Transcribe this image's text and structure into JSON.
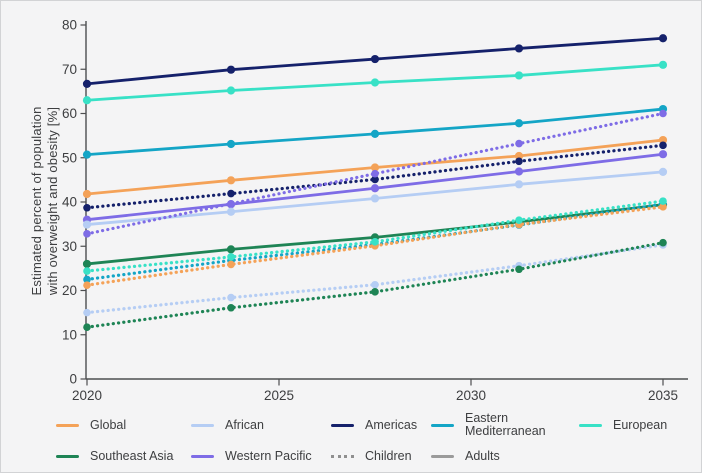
{
  "figure": {
    "ylabel_line1": "Estimated percent of population",
    "ylabel_line2": "with overweight and obesity [%]"
  },
  "chart_data": {
    "type": "line",
    "title": "",
    "xlabel": "",
    "ylabel": "Estimated percent of population with overweight and obesity [%]",
    "x": [
      2020,
      2023.75,
      2027.5,
      2031.25,
      2035
    ],
    "x_ticks": [
      "2020",
      "2025",
      "2030",
      "2035"
    ],
    "y_ticks": [
      "0",
      "10",
      "20",
      "30",
      "40",
      "50",
      "60",
      "70",
      "80"
    ],
    "ylim": [
      0,
      80
    ],
    "xlim": [
      2020,
      2035.6
    ],
    "grid": false,
    "legend_position": "bottom",
    "line_style_meaning": {
      "solid": "Adults",
      "dotted": "Children"
    },
    "series": [
      {
        "name": "Americas",
        "group": "Adults",
        "style": "solid",
        "color": "#15216b",
        "values": [
          66.7,
          69.9,
          72.3,
          74.7,
          77.0
        ]
      },
      {
        "name": "European",
        "group": "Adults",
        "style": "solid",
        "color": "#38e1c6",
        "values": [
          63.0,
          65.2,
          67.0,
          68.6,
          71.0
        ]
      },
      {
        "name": "Eastern Mediterranean",
        "group": "Adults",
        "style": "solid",
        "color": "#14a5c6",
        "values": [
          50.7,
          53.1,
          55.4,
          57.8,
          61.0
        ]
      },
      {
        "name": "Global",
        "group": "Adults",
        "style": "solid",
        "color": "#f4a258",
        "values": [
          41.8,
          44.9,
          47.8,
          50.4,
          54.0
        ]
      },
      {
        "name": "Western Pacific",
        "group": "Adults",
        "style": "solid",
        "color": "#7e6ce6",
        "values": [
          36.0,
          39.5,
          43.1,
          46.9,
          50.8
        ]
      },
      {
        "name": "African",
        "group": "Adults",
        "style": "solid",
        "color": "#b5cdf4",
        "values": [
          34.9,
          37.8,
          40.8,
          44.0,
          46.8
        ]
      },
      {
        "name": "Southeast Asia",
        "group": "Adults",
        "style": "solid",
        "color": "#1e8455",
        "values": [
          26.0,
          29.3,
          32.0,
          35.5,
          39.4
        ]
      },
      {
        "name": "Americas",
        "group": "Children",
        "style": "dotted",
        "color": "#15216b",
        "values": [
          38.7,
          41.9,
          45.1,
          49.2,
          52.8
        ]
      },
      {
        "name": "Western Pacific",
        "group": "Children",
        "style": "dotted",
        "color": "#7e6ce6",
        "values": [
          32.8,
          39.6,
          46.4,
          53.2,
          60.0
        ]
      },
      {
        "name": "African",
        "group": "Children",
        "style": "dotted",
        "color": "#b5cdf4",
        "values": [
          15.0,
          18.4,
          21.3,
          25.6,
          30.3
        ]
      },
      {
        "name": "Eastern Mediterranean",
        "group": "Children",
        "style": "dotted",
        "color": "#14a5c6",
        "values": [
          22.5,
          26.8,
          30.4,
          34.8,
          39.5
        ]
      },
      {
        "name": "Global",
        "group": "Children",
        "style": "dotted",
        "color": "#f4a258",
        "values": [
          21.2,
          25.9,
          30.1,
          34.9,
          38.9
        ]
      },
      {
        "name": "European",
        "group": "Children",
        "style": "dotted",
        "color": "#38e1c6",
        "values": [
          24.4,
          27.6,
          31.0,
          35.9,
          40.2
        ]
      },
      {
        "name": "Southeast Asia",
        "group": "Children",
        "style": "dotted",
        "color": "#1e8455",
        "values": [
          11.7,
          16.1,
          19.7,
          24.8,
          30.8
        ]
      }
    ]
  },
  "legend": {
    "rows": [
      [
        {
          "label": "Global",
          "color": "#f4a258",
          "style": "solid",
          "wrap": false
        },
        {
          "label": "African",
          "color": "#b5cdf4",
          "style": "solid",
          "wrap": false
        },
        {
          "label": "Americas",
          "color": "#15216b",
          "style": "solid",
          "wrap": false
        },
        {
          "label": "Eastern Mediterranean",
          "color": "#14a5c6",
          "style": "solid",
          "wrap": true
        },
        {
          "label": "European",
          "color": "#38e1c6",
          "style": "solid",
          "wrap": false
        }
      ],
      [
        {
          "label": "Southeast Asia",
          "color": "#1e8455",
          "style": "solid",
          "wrap": false
        },
        {
          "label": "Western Pacific",
          "color": "#7e6ce6",
          "style": "solid",
          "wrap": false
        },
        {
          "label": "Children",
          "color": "#8f8f8f",
          "style": "dotted",
          "wrap": false
        },
        {
          "label": "Adults",
          "color": "#9a9a9a",
          "style": "solid",
          "wrap": false
        }
      ]
    ]
  }
}
